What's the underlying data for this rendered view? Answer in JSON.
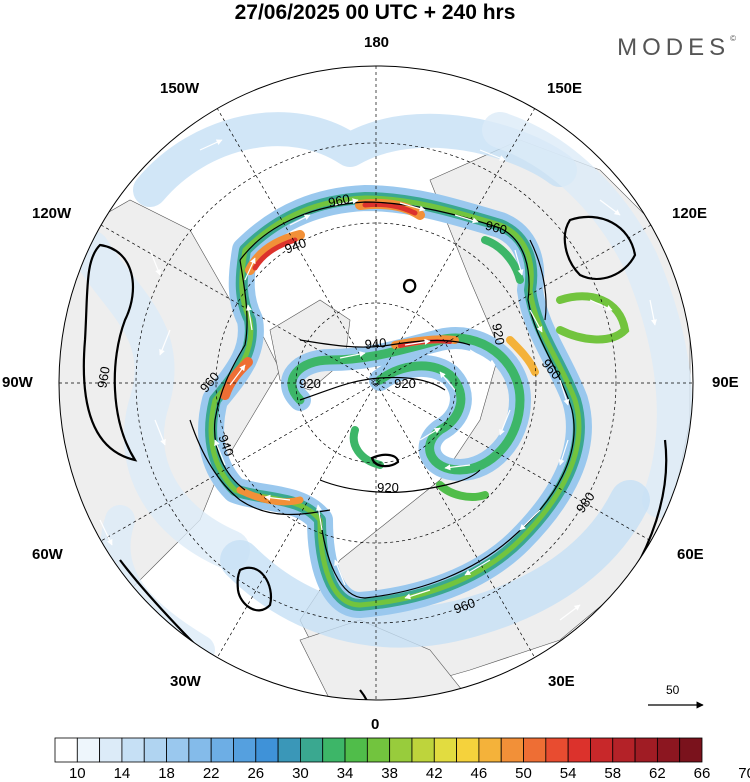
{
  "title": "27/06/2025  00 UTC  + 240 hrs",
  "brand": "MODES",
  "brand_mark": "©",
  "map": {
    "projection": "north-polar-stereographic",
    "longitude_labels": {
      "top": "180",
      "bottom": "0",
      "left": "90W",
      "right": "90E",
      "upper_left_1": "150W",
      "upper_left_2": "120W",
      "upper_right_1": "150E",
      "upper_right_2": "120E",
      "lower_left_1": "60W",
      "lower_left_2": "30W",
      "lower_right_1": "60E",
      "lower_right_2": "30E"
    },
    "contour_labels": [
      "960",
      "940",
      "960",
      "920",
      "960",
      "940",
      "960",
      "920",
      "920",
      "940",
      "960",
      "920",
      "960",
      "980",
      "960",
      "980"
    ],
    "reference_vector_label": "50",
    "colors": {
      "land": "#eeeeee",
      "ocean": "#ffffff",
      "contour": "#000000",
      "jet_core": "#d72c2c"
    }
  },
  "colorbar": {
    "labels": [
      "10",
      "14",
      "18",
      "22",
      "26",
      "30",
      "34",
      "38",
      "42",
      "46",
      "50",
      "54",
      "58",
      "62",
      "66",
      "70"
    ],
    "colors": [
      "#ffffff",
      "#eef6fc",
      "#dcebf8",
      "#c6e0f5",
      "#b0d4f1",
      "#9ac8ee",
      "#84bbea",
      "#6daee5",
      "#55a0df",
      "#3f92d8",
      "#3a97b8",
      "#3aa890",
      "#3db668",
      "#50bd4a",
      "#72c43e",
      "#98cc3c",
      "#bed43c",
      "#e2dc40",
      "#f5d23c",
      "#f4b23a",
      "#f29038",
      "#ee6e34",
      "#e84c30",
      "#dc322c",
      "#c8282a",
      "#b42228",
      "#a01c24",
      "#8c1620",
      "#7a121c"
    ]
  }
}
